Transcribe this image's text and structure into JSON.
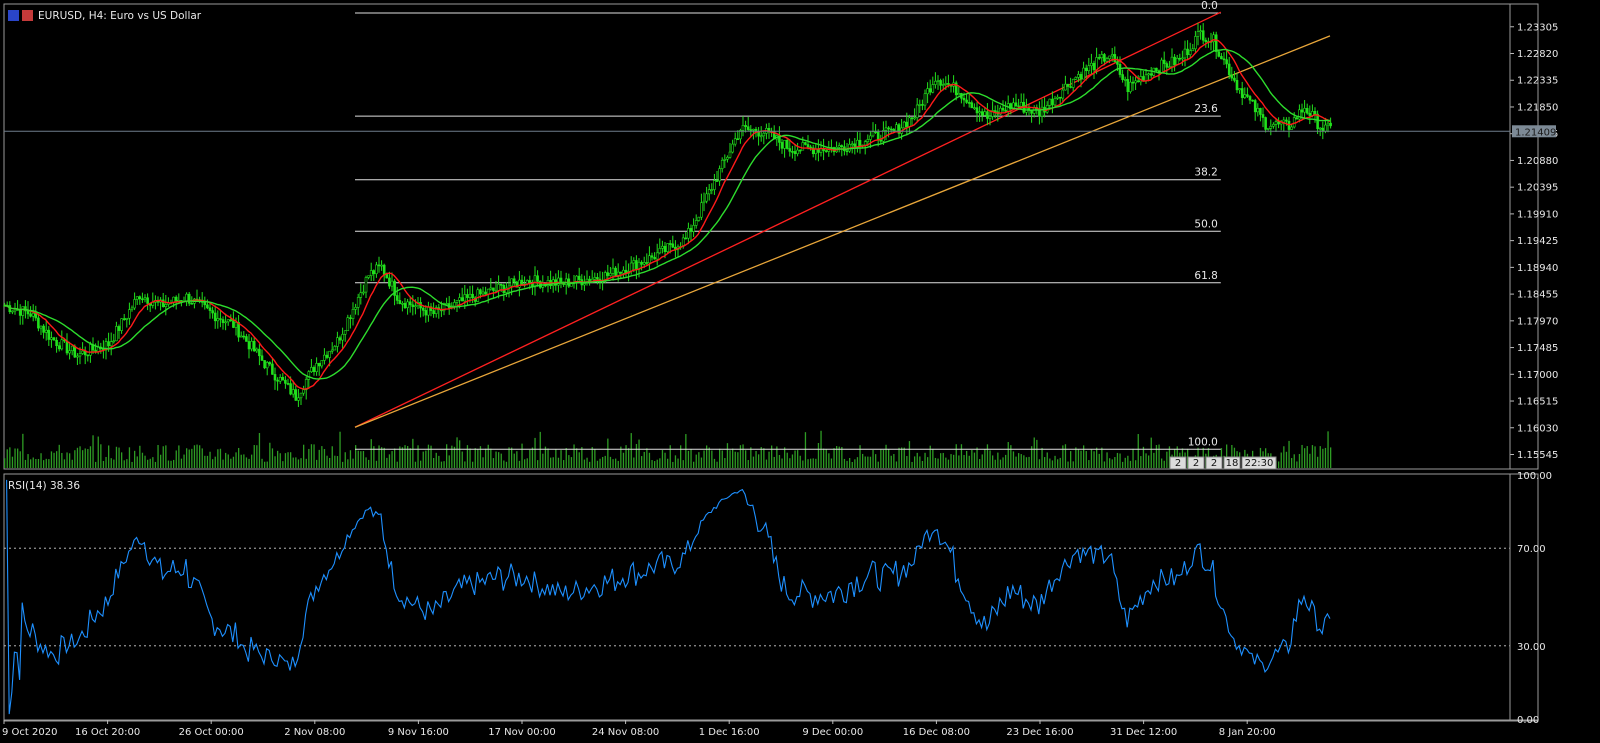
{
  "window": {
    "title": "EURUSD, H4:  Euro vs US Dollar",
    "flag_colors": {
      "eu": "#2a45c9",
      "us": "#c43a3a"
    }
  },
  "chart_data": [
    {
      "type": "line",
      "panel": "price",
      "title": "EURUSD, H4:  Euro vs US Dollar",
      "ylim": [
        1.153,
        1.237
      ],
      "y_ticks": [
        "1.23305",
        "1.22820",
        "1.22335",
        "1.21850",
        "1.21365",
        "1.20880",
        "1.20395",
        "1.19910",
        "1.19425",
        "1.18940",
        "1.18455",
        "1.17970",
        "1.17485",
        "1.17000",
        "1.16515",
        "1.16030",
        "1.15545"
      ],
      "y_tick_values": [
        1.23305,
        1.2282,
        1.22335,
        1.2185,
        1.21365,
        1.2088,
        1.20395,
        1.1991,
        1.19425,
        1.1894,
        1.18455,
        1.1797,
        1.17485,
        1.17,
        1.16515,
        1.1603,
        1.15545
      ],
      "current_price": "1.21409",
      "current_price_value": 1.21409,
      "x_ticks": [
        "9 Oct 2020",
        "16 Oct 20:00",
        "26 Oct 00:00",
        "2 Nov 08:00",
        "9 Nov 16:00",
        "17 Nov 00:00",
        "24 Nov 08:00",
        "1 Dec 16:00",
        "9 Dec 00:00",
        "16 Dec 08:00",
        "23 Dec 16:00",
        "31 Dec 12:00",
        "8 Jan 20:00"
      ],
      "bars_total": 400,
      "x_tick_bars": [
        0,
        40,
        80,
        120,
        160,
        200,
        240,
        280,
        320,
        360,
        400,
        440,
        480
      ],
      "price_path": [
        [
          0,
          1.1825
        ],
        [
          10,
          1.181
        ],
        [
          18,
          1.1765
        ],
        [
          28,
          1.1735
        ],
        [
          40,
          1.1755
        ],
        [
          52,
          1.1845
        ],
        [
          60,
          1.1825
        ],
        [
          70,
          1.184
        ],
        [
          78,
          1.1815
        ],
        [
          88,
          1.179
        ],
        [
          100,
          1.172
        ],
        [
          112,
          1.166
        ],
        [
          120,
          1.172
        ],
        [
          128,
          1.176
        ],
        [
          140,
          1.188
        ],
        [
          145,
          1.1895
        ],
        [
          152,
          1.1835
        ],
        [
          165,
          1.181
        ],
        [
          180,
          1.184
        ],
        [
          200,
          1.187
        ],
        [
          215,
          1.1865
        ],
        [
          232,
          1.188
        ],
        [
          248,
          1.191
        ],
        [
          262,
          1.1945
        ],
        [
          272,
          1.204
        ],
        [
          283,
          1.2145
        ],
        [
          292,
          1.214
        ],
        [
          302,
          1.211
        ],
        [
          320,
          1.211
        ],
        [
          330,
          1.2125
        ],
        [
          342,
          1.214
        ],
        [
          350,
          1.217
        ],
        [
          358,
          1.224
        ],
        [
          368,
          1.221
        ],
        [
          378,
          1.2165
        ],
        [
          388,
          1.219
        ],
        [
          398,
          1.2175
        ],
        [
          412,
          1.224
        ],
        [
          425,
          1.228
        ],
        [
          432,
          1.222
        ],
        [
          442,
          1.2255
        ],
        [
          452,
          1.227
        ],
        [
          460,
          1.232
        ],
        [
          465,
          1.2305
        ],
        [
          474,
          1.2225
        ],
        [
          485,
          1.2155
        ],
        [
          494,
          1.215
        ],
        [
          500,
          1.2185
        ],
        [
          507,
          1.2145
        ],
        [
          510,
          1.2145
        ]
      ],
      "volume_max_note": "volume histogram (relative)",
      "series": [
        {
          "name": "",
          "role": "candles",
          "color": "#21e11c"
        },
        {
          "name": "",
          "role": "fast-ma",
          "color": "#ff1a1a"
        },
        {
          "name": "",
          "role": "slow-ma",
          "color": "#2ddc2d"
        },
        {
          "name": "",
          "role": "volume",
          "color": "#2e9c24"
        }
      ],
      "fibonacci": {
        "color": "#e0e0e0",
        "levels": [
          {
            "label": "0.0",
            "price": 1.23555
          },
          {
            "label": "23.6",
            "price": 1.21685
          },
          {
            "label": "38.2",
            "price": 1.2053
          },
          {
            "label": "50.0",
            "price": 1.19595
          },
          {
            "label": "61.8",
            "price": 1.1866
          },
          {
            "label": "100.0",
            "price": 1.1564
          }
        ],
        "start_bar": 135,
        "end_bar": 468
      },
      "trendlines": [
        {
          "color": "#ff2020",
          "from": [
            135,
            1.1604
          ],
          "to": [
            468,
            1.2357
          ]
        },
        {
          "color": "#e8a63a",
          "from": [
            135,
            1.1604
          ],
          "to": [
            510,
            1.2314
          ]
        }
      ],
      "time_readout": [
        "2",
        "2",
        "2",
        "18",
        "22:30"
      ]
    },
    {
      "type": "line",
      "panel": "indicator",
      "title": "RSI(14) 38.36",
      "ylim": [
        0,
        100
      ],
      "y_ticks": [
        "100.00",
        "70.00",
        "30.00",
        "0.00"
      ],
      "y_tick_values": [
        100,
        70,
        30,
        0
      ],
      "levels": [
        70,
        30
      ],
      "series": [
        {
          "name": "RSI(14) 38.36",
          "color": "#1e90ff"
        }
      ]
    }
  ]
}
